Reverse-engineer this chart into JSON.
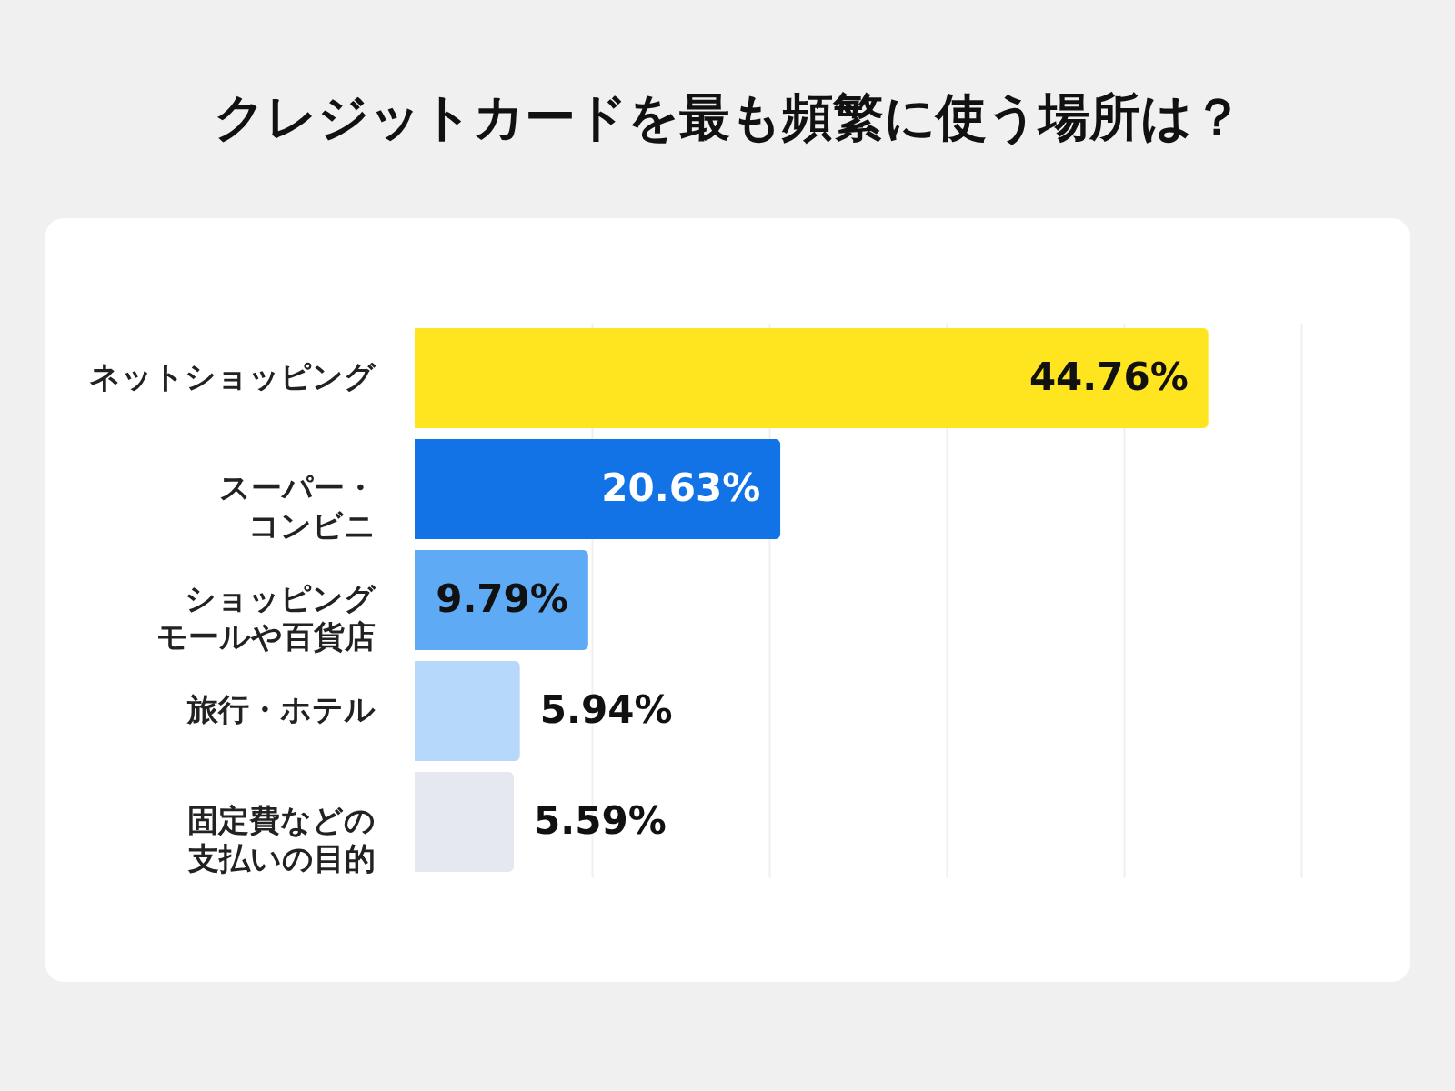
{
  "chart_data": {
    "type": "bar",
    "orientation": "horizontal",
    "title": "クレジットカードを最も頻繁に使う場所は？",
    "categories": [
      "ネットショッピング",
      "スーパー・コンビニ",
      "ショッピングモールや百貨店",
      "旅行・ホテル",
      "固定費などの支払いの目的"
    ],
    "values": [
      44.76,
      20.63,
      9.79,
      5.94,
      5.59
    ],
    "colors": [
      "#ffe420",
      "#1273e6",
      "#5eaaf5",
      "#b6d8fb",
      "#e5e9ef"
    ],
    "value_labels": [
      "44.76%",
      "20.63%",
      "9.79%",
      "5.94%",
      "5.59%"
    ],
    "xlim": [
      0,
      50
    ],
    "xticks": [
      {
        "value": 10,
        "label": null
      },
      {
        "value": 20,
        "label": null
      },
      {
        "value": 30,
        "label": null
      },
      {
        "value": 40,
        "label": null
      },
      {
        "value": 50,
        "label": null
      }
    ],
    "grid": "x",
    "tick_labels": "y"
  }
}
